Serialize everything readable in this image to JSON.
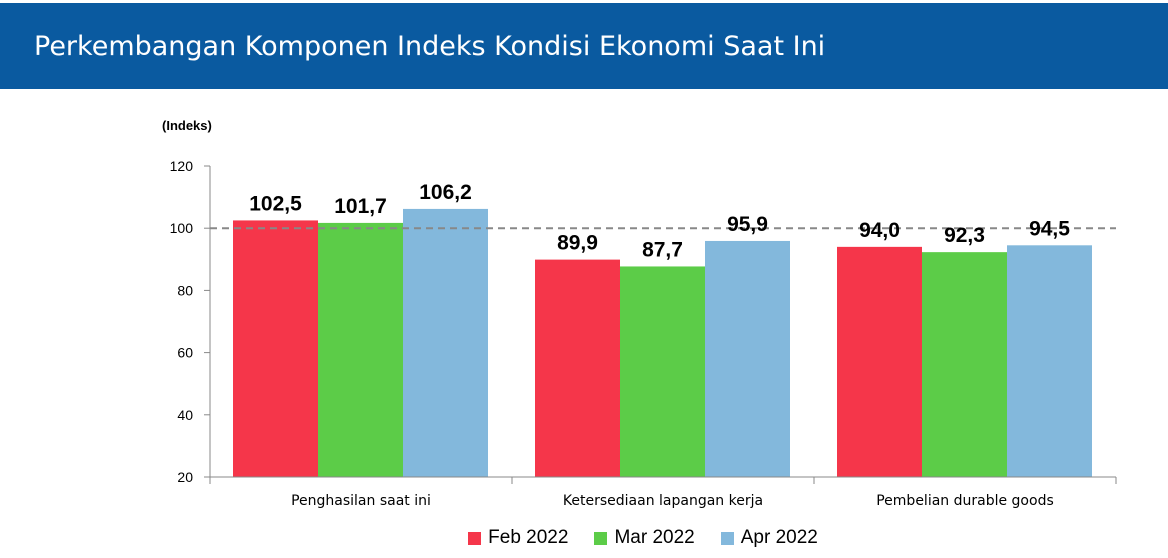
{
  "header": {
    "title": "Perkembangan Komponen Indeks Kondisi Ekonomi Saat Ini"
  },
  "colors": {
    "header_bg": "#0a5aa0",
    "Feb 2022": "#f5364a",
    "Mar 2022": "#5ccc48",
    "Apr 2022": "#83b8dc"
  },
  "chart_data": {
    "type": "bar",
    "ylabel": "(Indeks)",
    "ylim": [
      20,
      120
    ],
    "yticks": [
      20,
      40,
      60,
      80,
      100,
      120
    ],
    "reference_line": 100,
    "categories": [
      "Penghasilan saat ini",
      "Ketersediaan lapangan kerja",
      "Pembelian durable goods"
    ],
    "series": [
      {
        "name": "Feb 2022",
        "values": [
          102.5,
          89.9,
          94.0
        ],
        "labels": [
          "102,5",
          "89,9",
          "94,0"
        ]
      },
      {
        "name": "Mar 2022",
        "values": [
          101.7,
          87.7,
          92.3
        ],
        "labels": [
          "101,7",
          "87,7",
          "92,3"
        ]
      },
      {
        "name": "Apr 2022",
        "values": [
          106.2,
          95.9,
          94.5
        ],
        "labels": [
          "106,2",
          "95,9",
          "94,5"
        ]
      }
    ],
    "legend": "bottom"
  }
}
